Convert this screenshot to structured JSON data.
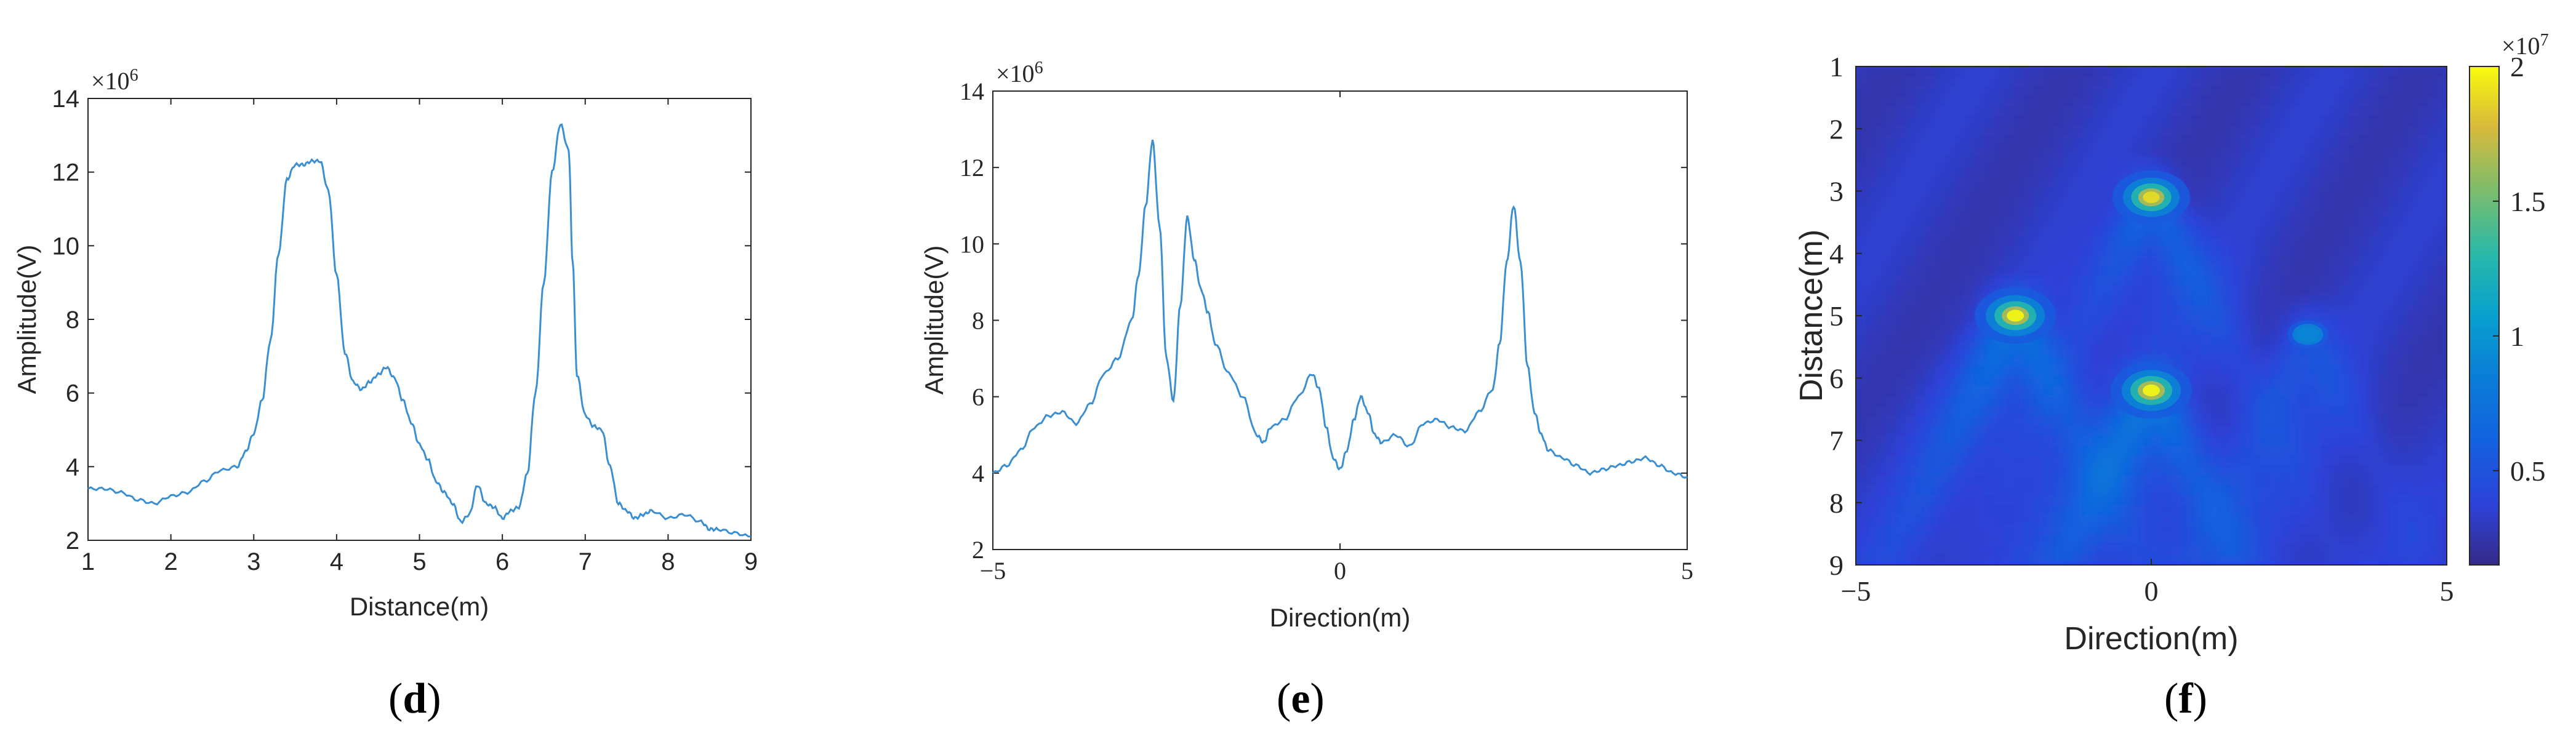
{
  "chart_data": [
    {
      "type": "line",
      "panel_label": "d",
      "xlabel": "Distance(m)",
      "ylabel": "Amplitude(V)",
      "exponent_label": "×10",
      "exponent_power": "6",
      "xlim": [
        1,
        9
      ],
      "ylim": [
        2,
        14
      ],
      "xticks": [
        1,
        2,
        3,
        4,
        5,
        6,
        7,
        8,
        9
      ],
      "xtick_labels": [
        "1",
        "2",
        "3",
        "4",
        "5",
        "6",
        "7",
        "8",
        "9"
      ],
      "yticks": [
        2,
        4,
        6,
        8,
        10,
        12,
        14
      ],
      "ytick_labels": [
        "2",
        "4",
        "6",
        "8",
        "10",
        "12",
        "14"
      ],
      "color": "#3b8fd1",
      "series": [
        {
          "x": [
            1.0,
            1.2,
            1.4,
            1.6,
            1.8,
            2.0,
            2.2,
            2.4,
            2.6,
            2.8,
            2.9,
            3.0,
            3.1,
            3.2,
            3.3,
            3.4,
            3.5,
            3.6,
            3.7,
            3.8,
            3.9,
            4.0,
            4.1,
            4.2,
            4.3,
            4.4,
            4.5,
            4.6,
            4.7,
            4.8,
            4.9,
            5.0,
            5.1,
            5.2,
            5.3,
            5.4,
            5.5,
            5.6,
            5.7,
            5.8,
            5.9,
            6.0,
            6.1,
            6.2,
            6.3,
            6.4,
            6.5,
            6.6,
            6.7,
            6.8,
            6.85,
            6.9,
            7.0,
            7.1,
            7.2,
            7.3,
            7.4,
            7.5,
            7.6,
            7.7,
            7.8,
            8.0,
            8.2,
            8.4,
            8.5,
            8.6,
            8.8,
            9.0
          ],
          "y": [
            3.4,
            3.4,
            3.3,
            3.1,
            3.0,
            3.2,
            3.3,
            3.6,
            3.9,
            4.0,
            4.4,
            4.9,
            5.8,
            7.4,
            9.8,
            11.8,
            12.2,
            12.2,
            12.3,
            12.3,
            11.5,
            9.2,
            7.1,
            6.3,
            6.1,
            6.3,
            6.5,
            6.7,
            6.4,
            5.8,
            5.2,
            4.6,
            4.2,
            3.6,
            3.3,
            3.0,
            2.5,
            2.7,
            3.5,
            3.0,
            2.9,
            2.6,
            2.8,
            2.9,
            3.8,
            6.0,
            9.0,
            12.0,
            13.3,
            12.6,
            9.5,
            6.5,
            5.4,
            5.1,
            5.0,
            4.0,
            3.0,
            2.8,
            2.6,
            2.7,
            2.8,
            2.6,
            2.7,
            2.5,
            2.3,
            2.3,
            2.2,
            2.1
          ]
        }
      ]
    },
    {
      "type": "line",
      "panel_label": "e",
      "xlabel": "Direction(m)",
      "ylabel": "Amplitude(V)",
      "exponent_label": "×10",
      "exponent_power": "6",
      "xlim": [
        -5,
        5
      ],
      "ylim": [
        2,
        14
      ],
      "xticks": [
        -5,
        0,
        5
      ],
      "xtick_labels": [
        "−5",
        "0",
        "5"
      ],
      "yticks": [
        2,
        4,
        6,
        8,
        10,
        12,
        14
      ],
      "ytick_labels": [
        "2",
        "4",
        "6",
        "8",
        "10",
        "12",
        "14"
      ],
      "color": "#3b8fd1",
      "series": [
        {
          "x": [
            -5.0,
            -4.8,
            -4.6,
            -4.4,
            -4.2,
            -4.0,
            -3.8,
            -3.6,
            -3.4,
            -3.2,
            -3.0,
            -2.9,
            -2.8,
            -2.7,
            -2.6,
            -2.5,
            -2.4,
            -2.3,
            -2.2,
            -2.1,
            -2.0,
            -1.9,
            -1.8,
            -1.6,
            -1.4,
            -1.2,
            -1.1,
            -1.0,
            -0.8,
            -0.6,
            -0.4,
            -0.3,
            -0.2,
            -0.1,
            0.0,
            0.1,
            0.2,
            0.3,
            0.4,
            0.5,
            0.6,
            0.8,
            1.0,
            1.2,
            1.4,
            1.6,
            1.8,
            2.0,
            2.2,
            2.3,
            2.4,
            2.5,
            2.6,
            2.7,
            2.8,
            2.9,
            3.0,
            3.2,
            3.4,
            3.6,
            3.8,
            4.0,
            4.2,
            4.4,
            4.6,
            4.8,
            5.0
          ],
          "y": [
            4.0,
            4.2,
            4.6,
            5.2,
            5.5,
            5.6,
            5.3,
            5.8,
            6.6,
            7.0,
            8.0,
            9.2,
            11.0,
            12.7,
            10.5,
            7.0,
            5.9,
            8.4,
            10.7,
            9.6,
            8.8,
            8.2,
            7.4,
            6.6,
            6.0,
            5.0,
            4.8,
            5.2,
            5.4,
            6.0,
            6.6,
            6.2,
            5.2,
            4.4,
            4.1,
            4.6,
            5.4,
            6.0,
            5.6,
            5.0,
            4.8,
            5.0,
            4.7,
            5.3,
            5.4,
            5.2,
            5.1,
            5.6,
            6.2,
            7.4,
            9.5,
            11.0,
            9.5,
            6.8,
            5.6,
            5.0,
            4.6,
            4.4,
            4.2,
            4.0,
            4.1,
            4.2,
            4.3,
            4.4,
            4.2,
            4.0,
            3.9
          ]
        }
      ]
    },
    {
      "type": "heatmap",
      "panel_label": "f",
      "xlabel": "Direction(m)",
      "ylabel": "Distance(m)",
      "xlim": [
        -5,
        5
      ],
      "ylim": [
        1,
        9
      ],
      "xticks": [
        -5,
        0,
        5
      ],
      "xtick_labels": [
        "−5",
        "0",
        "5"
      ],
      "yticks": [
        1,
        2,
        3,
        4,
        5,
        6,
        7,
        8,
        9
      ],
      "ytick_labels": [
        "1",
        "2",
        "3",
        "4",
        "5",
        "6",
        "7",
        "8",
        "9"
      ],
      "colorbar": {
        "exponent_label": "×10",
        "exponent_power": "7",
        "range": [
          0.15,
          2.0
        ],
        "ticks": [
          0.5,
          1,
          1.5,
          2
        ],
        "tick_labels": [
          "0.5",
          "1",
          "1.5",
          "2"
        ],
        "colormap": "parula"
      },
      "hotspots": [
        {
          "direction": 0.0,
          "distance": 3.1,
          "amplitude": 1.9
        },
        {
          "direction": -2.3,
          "distance": 5.0,
          "amplitude": 2.0
        },
        {
          "direction": 0.0,
          "distance": 6.2,
          "amplitude": 2.0
        },
        {
          "direction": 2.65,
          "distance": 5.3,
          "amplitude": 0.9
        }
      ],
      "background_level": 0.3
    }
  ]
}
